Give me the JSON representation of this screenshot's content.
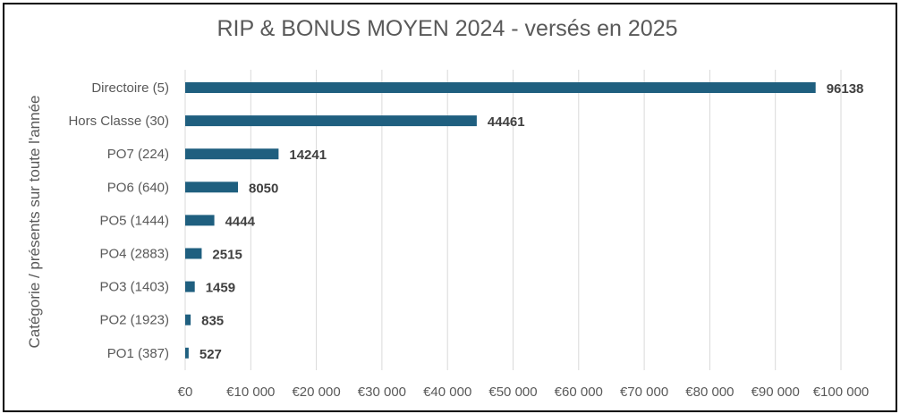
{
  "colors": {
    "bar": "#1f5f7f",
    "grid": "#d9d9d9",
    "text": "#595959",
    "value_label": "#404040",
    "border": "#000000"
  },
  "chart_data": {
    "type": "bar",
    "orientation": "horizontal",
    "title": "RIP & BONUS MOYEN 2024 - versés en 2025",
    "xlabel": "",
    "ylabel": "Catégorie / présents sur toute l'année",
    "categories": [
      "Directoire (5)",
      "Hors Classe (30)",
      "PO7 (224)",
      "PO6 (640)",
      "PO5 (1444)",
      "PO4 (2883)",
      "PO3 (1403)",
      "PO2 (1923)",
      "PO1 (387)"
    ],
    "values": [
      96138,
      44461,
      14241,
      8050,
      4444,
      2515,
      1459,
      835,
      527
    ],
    "data_labels": [
      "96138",
      "44461",
      "14241",
      "8050",
      "4444",
      "2515",
      "1459",
      "835",
      "527"
    ],
    "xlim": [
      0,
      100000
    ],
    "x_ticks": [
      0,
      10000,
      20000,
      30000,
      40000,
      50000,
      60000,
      70000,
      80000,
      90000,
      100000
    ],
    "x_tick_labels": [
      "€0",
      "€10 000",
      "€20 000",
      "€30 000",
      "€40 000",
      "€50 000",
      "€60 000",
      "€70 000",
      "€80 000",
      "€90 000",
      "€100 000"
    ],
    "grid": true,
    "legend": "none"
  }
}
